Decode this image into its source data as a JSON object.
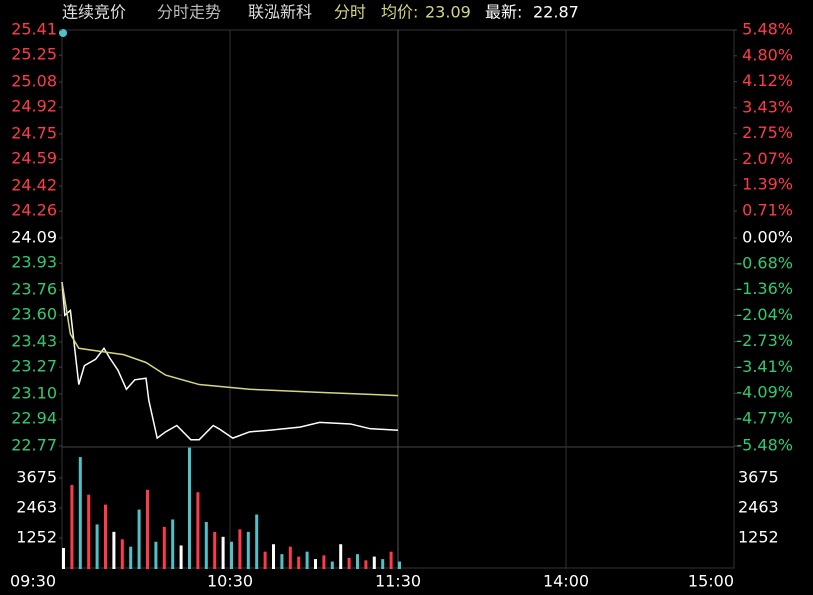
{
  "header": {
    "mode": "连续竞价",
    "view": "分时走势",
    "name": "联泓新科",
    "period": "分时",
    "avg_label": "均价:",
    "avg": 23.09,
    "last_label": "最新:",
    "last": 22.87
  },
  "chart_data": {
    "type": "line",
    "xlim": [
      0,
      240
    ],
    "xticks": [
      {
        "value": 0,
        "label": "09:30"
      },
      {
        "value": 60,
        "label": "10:30"
      },
      {
        "value": 120,
        "label": "11:30"
      },
      {
        "value": 180,
        "label": "14:00"
      },
      {
        "value": 240,
        "label": "15:00"
      }
    ],
    "ylim": [
      22.77,
      25.41
    ],
    "yticks": [
      25.41,
      25.25,
      25.08,
      24.92,
      24.75,
      24.59,
      24.42,
      24.26,
      24.09,
      23.93,
      23.76,
      {
        "value": 23.6,
        "label": "23.60"
      },
      23.43,
      23.27,
      {
        "value": 23.1,
        "label": "23.10"
      },
      22.94,
      22.77
    ],
    "y2lim": [
      -5.48,
      5.48
    ],
    "y2ticks": [
      {
        "value": 5.48,
        "label": "5.48%"
      },
      {
        "value": 4.8,
        "label": "4.80%"
      },
      {
        "value": 4.12,
        "label": "4.12%"
      },
      {
        "value": 3.43,
        "label": "3.43%"
      },
      {
        "value": 2.75,
        "label": "2.75%"
      },
      {
        "value": 2.07,
        "label": "2.07%"
      },
      {
        "value": 1.39,
        "label": "1.39%"
      },
      {
        "value": 0.71,
        "label": "0.71%"
      },
      {
        "value": 0,
        "label": "0.00%"
      },
      {
        "value": -0.68,
        "label": "-0.68%"
      },
      {
        "value": -1.36,
        "label": "-1.36%"
      },
      {
        "value": -2.04,
        "label": "-2.04%"
      },
      {
        "value": -2.73,
        "label": "-2.73%"
      },
      {
        "value": -3.41,
        "label": "-3.41%"
      },
      {
        "value": -4.09,
        "label": "-4.09%"
      },
      {
        "value": -4.77,
        "label": "-4.77%"
      },
      {
        "value": -5.48,
        "label": "-5.48%"
      }
    ],
    "up_color": "#ff3b4a",
    "down_color": "#2ecc71",
    "flat_color": "#ffffff",
    "series": [
      {
        "color": "#ffffff",
        "x": [
          0,
          1,
          3,
          6,
          8,
          12,
          15,
          17,
          20,
          23,
          26,
          30,
          31,
          34,
          37,
          41,
          46,
          49,
          54,
          56,
          61,
          67,
          74,
          85,
          92,
          103,
          110,
          120
        ],
        "values": [
          23.81,
          23.6,
          23.63,
          23.16,
          23.28,
          23.32,
          23.39,
          23.33,
          23.25,
          23.13,
          23.19,
          23.2,
          23.06,
          22.82,
          22.86,
          22.9,
          22.81,
          22.81,
          22.9,
          22.88,
          22.82,
          22.86,
          22.87,
          22.89,
          22.92,
          22.91,
          22.88,
          22.87
        ]
      },
      {
        "color": "#d6d680",
        "x": [
          0,
          3,
          6,
          14,
          22,
          30,
          37,
          49,
          67,
          92,
          120
        ],
        "values": [
          23.81,
          23.48,
          23.39,
          23.37,
          23.35,
          23.3,
          23.22,
          23.16,
          23.13,
          23.11,
          23.09
        ]
      }
    ],
    "volume": {
      "ylim": [
        0,
        4886
      ],
      "yticks": [
        3675,
        2463,
        1252
      ],
      "x": [
        0,
        3,
        6,
        9,
        12,
        15,
        18,
        21,
        24,
        27,
        30,
        33,
        36,
        39,
        42,
        45,
        48,
        51,
        54,
        57,
        60,
        63,
        66,
        69,
        72,
        75,
        78,
        81,
        84,
        87,
        90,
        93,
        96,
        99,
        102,
        105,
        108,
        111,
        114,
        117,
        120
      ],
      "values": [
        850,
        3390,
        4520,
        3000,
        1800,
        2600,
        1500,
        1200,
        900,
        2400,
        3200,
        1100,
        1700,
        2000,
        950,
        4900,
        3100,
        1900,
        1500,
        1300,
        1100,
        1600,
        1500,
        2200,
        700,
        1000,
        600,
        900,
        500,
        700,
        400,
        550,
        300,
        1000,
        450,
        600,
        350,
        500,
        400,
        700,
        300
      ],
      "colors": [
        "#ffffff",
        "#ff3b4a",
        "#4fc1c9",
        "#ff3b4a",
        "#4fc1c9",
        "#ff3b4a",
        "#ffffff",
        "#ff3b4a",
        "#4fc1c9",
        "#4fc1c9",
        "#ff3b4a",
        "#4fc1c9",
        "#ff3b4a",
        "#4fc1c9",
        "#ffffff",
        "#4fc1c9",
        "#ff3b4a",
        "#4fc1c9",
        "#ff3b4a",
        "#ffffff",
        "#4fc1c9",
        "#ff3b4a",
        "#4fc1c9",
        "#4fc1c9",
        "#ff3b4a",
        "#ffffff",
        "#4fc1c9",
        "#ff3b4a",
        "#ff3b4a",
        "#4fc1c9",
        "#ffffff",
        "#ff3b4a",
        "#4fc1c9",
        "#ffffff",
        "#ff3b4a",
        "#4fc1c9",
        "#ff3b4a",
        "#ffffff",
        "#4fc1c9",
        "#ff3b4a",
        "#4fc1c9"
      ]
    }
  }
}
